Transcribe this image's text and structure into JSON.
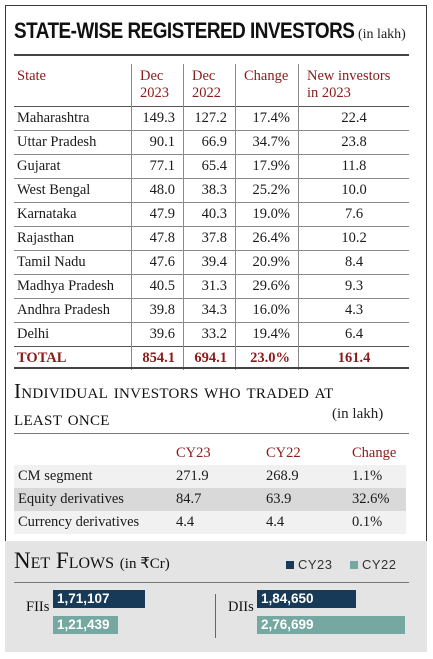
{
  "chart_data": [
    {
      "type": "table",
      "title": "STATE-WISE REGISTERED INVESTORS",
      "unit": "(in lakh)",
      "columns": [
        "State",
        "Dec 2023",
        "Dec 2022",
        "Change",
        "New investors in 2023"
      ],
      "rows": [
        [
          "Maharashtra",
          "149.3",
          "127.2",
          "17.4%",
          "22.4"
        ],
        [
          "Uttar Pradesh",
          "90.1",
          "66.9",
          "34.7%",
          "23.8"
        ],
        [
          "Gujarat",
          "77.1",
          "65.4",
          "17.9%",
          "11.8"
        ],
        [
          "West Bengal",
          "48.0",
          "38.3",
          "25.2%",
          "10.0"
        ],
        [
          "Karnataka",
          "47.9",
          "40.3",
          "19.0%",
          "7.6"
        ],
        [
          "Rajasthan",
          "47.8",
          "37.8",
          "26.4%",
          "10.2"
        ],
        [
          "Tamil Nadu",
          "47.6",
          "39.4",
          "20.9%",
          "8.4"
        ],
        [
          "Madhya Pradesh",
          "40.5",
          "31.3",
          "29.6%",
          "9.3"
        ],
        [
          "Andhra Pradesh",
          "39.8",
          "34.3",
          "16.0%",
          "4.3"
        ],
        [
          "Delhi",
          "39.6",
          "33.2",
          "19.4%",
          "6.4"
        ]
      ],
      "total": [
        "TOTAL",
        "854.1",
        "694.1",
        "23.0%",
        "161.4"
      ]
    },
    {
      "type": "table",
      "title": "Individual investors who traded at least once",
      "unit": "(in lakh)",
      "columns": [
        "",
        "CY23",
        "CY22",
        "Change"
      ],
      "rows": [
        [
          "CM segment",
          "271.9",
          "268.9",
          "1.1%"
        ],
        [
          "Equity derivatives",
          "84.7",
          "63.9",
          "32.6%"
        ],
        [
          "Currency derivatives",
          "4.4",
          "4.4",
          "0.1%"
        ]
      ]
    },
    {
      "type": "bar",
      "title": "Net Flows",
      "unit": "(in ₹Cr)",
      "categories": [
        "FIIs",
        "DIIs"
      ],
      "series": [
        {
          "name": "CY23",
          "color": "#163a57",
          "values": [
            171107,
            184650
          ],
          "labels": [
            "1,71,107",
            "1,84,650"
          ]
        },
        {
          "name": "CY22",
          "color": "#74a8a0",
          "values": [
            121439,
            276699
          ],
          "labels": [
            "1,21,439",
            "2,76,699"
          ]
        }
      ],
      "xlim": [
        0,
        276699
      ]
    }
  ]
}
